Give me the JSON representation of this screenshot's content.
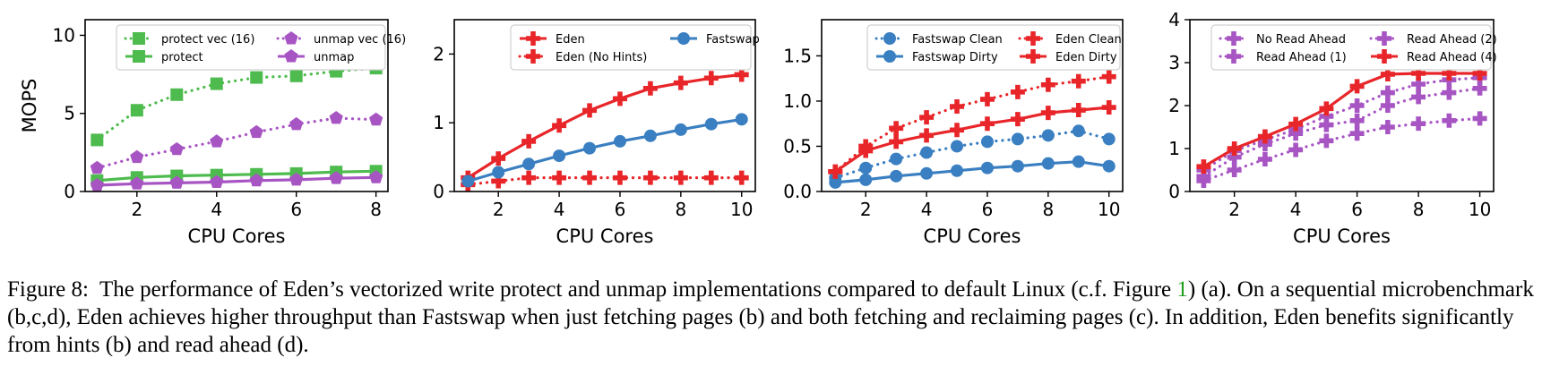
{
  "chart_data": [
    {
      "type": "line",
      "panel": "a",
      "xlabel": "CPU Cores",
      "ylabel": "MOPS",
      "xlim": [
        0.7,
        8.3
      ],
      "ylim": [
        0,
        11
      ],
      "xticks": [
        2,
        4,
        6,
        8
      ],
      "yticks": [
        0,
        5,
        10
      ],
      "legend_position": "top",
      "legend_columns": 2,
      "series": [
        {
          "name": "protect vec (16)",
          "color": "#4dbb4d",
          "marker": "square",
          "linestyle": "dotted",
          "x": [
            1,
            2,
            3,
            4,
            5,
            6,
            7,
            8
          ],
          "y": [
            3.3,
            5.2,
            6.2,
            6.9,
            7.3,
            7.4,
            7.7,
            7.9
          ]
        },
        {
          "name": "protect",
          "color": "#4dbb4d",
          "marker": "square",
          "linestyle": "solid",
          "x": [
            1,
            2,
            3,
            4,
            5,
            6,
            7,
            8
          ],
          "y": [
            0.7,
            0.9,
            1.0,
            1.05,
            1.1,
            1.15,
            1.25,
            1.3
          ]
        },
        {
          "name": "unmap vec (16)",
          "color": "#a855c4",
          "marker": "pentagon",
          "linestyle": "dotted",
          "x": [
            1,
            2,
            3,
            4,
            5,
            6,
            7,
            8
          ],
          "y": [
            1.5,
            2.2,
            2.7,
            3.2,
            3.8,
            4.3,
            4.7,
            4.6
          ]
        },
        {
          "name": "unmap",
          "color": "#a855c4",
          "marker": "pentagon",
          "linestyle": "solid",
          "x": [
            1,
            2,
            3,
            4,
            5,
            6,
            7,
            8
          ],
          "y": [
            0.4,
            0.5,
            0.55,
            0.6,
            0.7,
            0.75,
            0.85,
            0.9
          ]
        }
      ]
    },
    {
      "type": "line",
      "panel": "b",
      "xlabel": "CPU Cores",
      "ylabel": "",
      "xlim": [
        0.55,
        10.45
      ],
      "ylim": [
        0,
        2.5
      ],
      "xticks": [
        2,
        4,
        6,
        8,
        10
      ],
      "yticks": [
        0,
        1,
        2
      ],
      "legend_position": "top",
      "legend_columns": 2,
      "series": [
        {
          "name": "Eden",
          "color": "#e8262a",
          "marker": "plus",
          "linestyle": "solid",
          "x": [
            1,
            2,
            3,
            4,
            5,
            6,
            7,
            8,
            9,
            10
          ],
          "y": [
            0.2,
            0.48,
            0.73,
            0.96,
            1.18,
            1.35,
            1.5,
            1.58,
            1.65,
            1.7
          ]
        },
        {
          "name": "Eden (No Hints)",
          "color": "#e8262a",
          "marker": "plus",
          "linestyle": "dotted",
          "x": [
            1,
            2,
            3,
            4,
            5,
            6,
            7,
            8,
            9,
            10
          ],
          "y": [
            0.1,
            0.15,
            0.2,
            0.2,
            0.2,
            0.2,
            0.2,
            0.2,
            0.2,
            0.2
          ]
        },
        {
          "name": "Fastswap",
          "color": "#3a7fc1",
          "marker": "circle",
          "linestyle": "solid",
          "x": [
            1,
            2,
            3,
            4,
            5,
            6,
            7,
            8,
            9,
            10
          ],
          "y": [
            0.15,
            0.28,
            0.4,
            0.52,
            0.63,
            0.73,
            0.81,
            0.9,
            0.98,
            1.05
          ]
        }
      ]
    },
    {
      "type": "line",
      "panel": "c",
      "xlabel": "CPU Cores",
      "ylabel": "",
      "xlim": [
        0.55,
        10.45
      ],
      "ylim": [
        0,
        1.9
      ],
      "xticks": [
        2,
        4,
        6,
        8,
        10
      ],
      "yticks": [
        0.0,
        0.5,
        1.0,
        1.5
      ],
      "legend_position": "top",
      "legend_columns": 2,
      "series": [
        {
          "name": "Fastswap Clean",
          "color": "#3a7fc1",
          "marker": "circle",
          "linestyle": "dotted",
          "x": [
            1,
            2,
            3,
            4,
            5,
            6,
            7,
            8,
            9,
            10
          ],
          "y": [
            0.15,
            0.26,
            0.36,
            0.43,
            0.5,
            0.55,
            0.58,
            0.62,
            0.67,
            0.58
          ]
        },
        {
          "name": "Fastswap Dirty",
          "color": "#3a7fc1",
          "marker": "circle",
          "linestyle": "solid",
          "x": [
            1,
            2,
            3,
            4,
            5,
            6,
            7,
            8,
            9,
            10
          ],
          "y": [
            0.1,
            0.13,
            0.17,
            0.2,
            0.23,
            0.26,
            0.28,
            0.31,
            0.33,
            0.28
          ]
        },
        {
          "name": "Eden Clean",
          "color": "#e8262a",
          "marker": "plus",
          "linestyle": "dotted",
          "x": [
            1,
            2,
            3,
            4,
            5,
            6,
            7,
            8,
            9,
            10
          ],
          "y": [
            0.22,
            0.5,
            0.7,
            0.82,
            0.94,
            1.02,
            1.1,
            1.18,
            1.22,
            1.27
          ]
        },
        {
          "name": "Eden Dirty",
          "color": "#e8262a",
          "marker": "plus",
          "linestyle": "solid",
          "x": [
            1,
            2,
            3,
            4,
            5,
            6,
            7,
            8,
            9,
            10
          ],
          "y": [
            0.22,
            0.45,
            0.55,
            0.62,
            0.68,
            0.75,
            0.8,
            0.87,
            0.9,
            0.93
          ]
        }
      ]
    },
    {
      "type": "line",
      "panel": "d",
      "xlabel": "CPU Cores",
      "ylabel": "",
      "xlim": [
        0.55,
        10.45
      ],
      "ylim": [
        0,
        4
      ],
      "xticks": [
        2,
        4,
        6,
        8,
        10
      ],
      "yticks": [
        0,
        1,
        2,
        3,
        4
      ],
      "legend_position": "top",
      "legend_columns": 2,
      "series": [
        {
          "name": "No Read Ahead",
          "color": "#a855c4",
          "marker": "plus",
          "linestyle": "dotted",
          "x": [
            1,
            2,
            3,
            4,
            5,
            6,
            7,
            8,
            9,
            10
          ],
          "y": [
            0.25,
            0.5,
            0.75,
            0.97,
            1.18,
            1.35,
            1.5,
            1.58,
            1.65,
            1.7
          ]
        },
        {
          "name": "Read Ahead (1)",
          "color": "#a855c4",
          "marker": "plus",
          "linestyle": "dotted",
          "x": [
            1,
            2,
            3,
            4,
            5,
            6,
            7,
            8,
            9,
            10
          ],
          "y": [
            0.35,
            0.8,
            1.1,
            1.35,
            1.55,
            1.65,
            2.0,
            2.2,
            2.3,
            2.4
          ]
        },
        {
          "name": "Read Ahead (2)",
          "color": "#a855c4",
          "marker": "plus",
          "linestyle": "dotted",
          "x": [
            1,
            2,
            3,
            4,
            5,
            6,
            7,
            8,
            9,
            10
          ],
          "y": [
            0.5,
            0.95,
            1.2,
            1.45,
            1.75,
            2.0,
            2.3,
            2.5,
            2.6,
            2.65
          ]
        },
        {
          "name": "Read Ahead (4)",
          "color": "#e8262a",
          "marker": "plus",
          "linestyle": "solid",
          "x": [
            1,
            2,
            3,
            4,
            5,
            6,
            7,
            8,
            9,
            10
          ],
          "y": [
            0.58,
            1.0,
            1.28,
            1.57,
            1.93,
            2.45,
            2.73,
            2.75,
            2.75,
            2.75
          ]
        }
      ]
    }
  ],
  "caption": {
    "label": "Figure 8:",
    "text_before_ref": "The performance of Eden’s vectorized write protect and unmap implementations compared to default Linux (c.f. Figure ",
    "ref": "1",
    "text_after_ref": ") (a). On a sequential microbenchmark (b,c,d), Eden achieves higher throughput than Fastswap when just fetching pages (b) and both fetching and reclaiming pages (c). In addition, Eden benefits significantly from hints (b) and read ahead (d)."
  }
}
